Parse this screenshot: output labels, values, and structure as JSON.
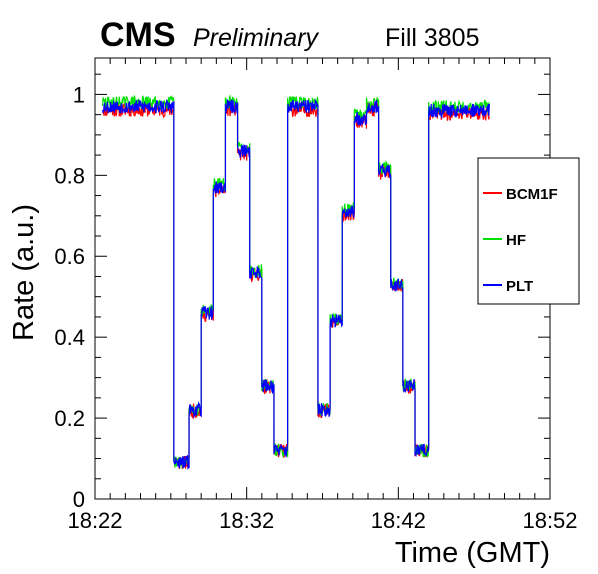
{
  "header": {
    "experiment": "CMS",
    "status": "Preliminary",
    "fill": "Fill 3805"
  },
  "chart_data": {
    "type": "line",
    "xlabel": "Time (GMT)",
    "ylabel": "Rate (a.u.)",
    "x_unit": "minutes of day",
    "xlim": [
      1342,
      1372
    ],
    "ylim": [
      0,
      1.09
    ],
    "x_ticks": [
      1342,
      1352,
      1362,
      1372
    ],
    "x_tick_labels": [
      "18:22",
      "18:32",
      "18:42",
      "18:52"
    ],
    "y_ticks": [
      0,
      0.2,
      0.4,
      0.6,
      0.8,
      1
    ],
    "y_tick_labels": [
      "0",
      "0.2",
      "0.4",
      "0.6",
      "0.8",
      "1"
    ],
    "grid": false,
    "legend_position": "right",
    "steps": [
      {
        "start": 1342.5,
        "end": 1347.2,
        "level": 0.97
      },
      {
        "start": 1347.2,
        "end": 1348.2,
        "level": 0.09
      },
      {
        "start": 1348.2,
        "end": 1349.0,
        "level": 0.22
      },
      {
        "start": 1349.0,
        "end": 1349.8,
        "level": 0.46
      },
      {
        "start": 1349.8,
        "end": 1350.6,
        "level": 0.77
      },
      {
        "start": 1350.6,
        "end": 1351.4,
        "level": 0.97
      },
      {
        "start": 1351.4,
        "end": 1352.2,
        "level": 0.86
      },
      {
        "start": 1352.2,
        "end": 1353.0,
        "level": 0.56
      },
      {
        "start": 1353.0,
        "end": 1353.8,
        "level": 0.28
      },
      {
        "start": 1353.8,
        "end": 1354.7,
        "level": 0.12
      },
      {
        "start": 1354.7,
        "end": 1356.7,
        "level": 0.97
      },
      {
        "start": 1356.7,
        "end": 1357.5,
        "level": 0.22
      },
      {
        "start": 1357.5,
        "end": 1358.3,
        "level": 0.44
      },
      {
        "start": 1358.3,
        "end": 1359.1,
        "level": 0.71
      },
      {
        "start": 1359.1,
        "end": 1359.9,
        "level": 0.94
      },
      {
        "start": 1359.9,
        "end": 1360.7,
        "level": 0.97
      },
      {
        "start": 1360.7,
        "end": 1361.5,
        "level": 0.81
      },
      {
        "start": 1361.5,
        "end": 1362.3,
        "level": 0.53
      },
      {
        "start": 1362.3,
        "end": 1363.1,
        "level": 0.28
      },
      {
        "start": 1363.1,
        "end": 1364.0,
        "level": 0.12
      },
      {
        "start": 1364.0,
        "end": 1368.0,
        "level": 0.96
      }
    ],
    "series": [
      {
        "name": "BCM1F",
        "color": "#ff0000",
        "offset": -0.008,
        "noise": 0.018,
        "seed": 11
      },
      {
        "name": "HF",
        "color": "#00e000",
        "offset": 0.01,
        "noise": 0.016,
        "seed": 29
      },
      {
        "name": "PLT",
        "color": "#0000ff",
        "offset": 0.0,
        "noise": 0.017,
        "seed": 53
      }
    ]
  }
}
